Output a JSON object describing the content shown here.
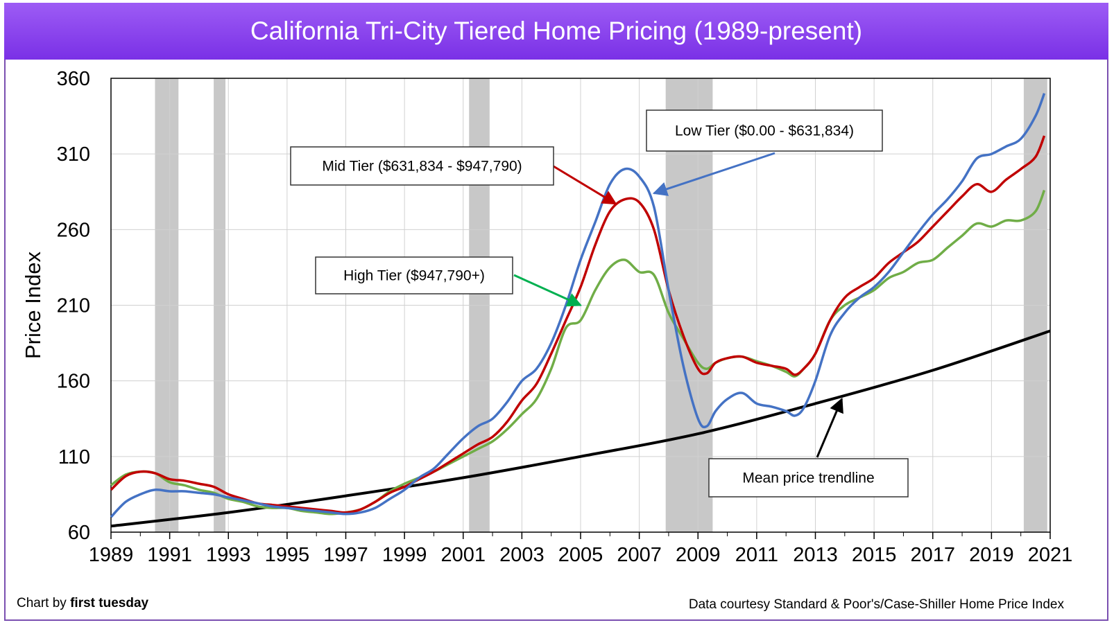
{
  "title": "California Tri-City Tiered Home Pricing (1989-present)",
  "credit_prefix": "Chart by ",
  "credit_brand": "first tuesday",
  "source": "Data courtesy Standard & Poor's/Case-Shiller Home Price Index",
  "colors": {
    "low": "#4472c4",
    "mid": "#c00000",
    "high": "#70ad47",
    "trend": "#000000",
    "recession": "#c8c8c8",
    "header": "#8a40ee"
  },
  "chart_data": {
    "type": "line",
    "ylabel": "Price Index",
    "xlabel": "",
    "xlim": [
      1989,
      2021
    ],
    "ylim": [
      60,
      360
    ],
    "yticks": [
      60,
      110,
      160,
      210,
      260,
      310,
      360
    ],
    "xticks": [
      1989,
      1991,
      1993,
      1995,
      1997,
      1999,
      2001,
      2003,
      2005,
      2007,
      2009,
      2011,
      2013,
      2015,
      2017,
      2019,
      2021
    ],
    "grid": true,
    "recessions": [
      [
        1990.5,
        1991.3
      ],
      [
        1992.5,
        1992.9
      ],
      [
        2001.2,
        2001.9
      ],
      [
        2007.9,
        2009.5
      ],
      [
        2020.1,
        2020.9
      ]
    ],
    "series": [
      {
        "key": "low",
        "name": "Low Tier ($0.00 - $631,834)",
        "x": [
          1989,
          1989.5,
          1990,
          1990.5,
          1991,
          1991.5,
          1992,
          1992.5,
          1993,
          1993.5,
          1994,
          1994.5,
          1995,
          1995.5,
          1996,
          1996.5,
          1997,
          1997.5,
          1998,
          1998.5,
          1999,
          1999.5,
          2000,
          2000.5,
          2001,
          2001.5,
          2002,
          2002.5,
          2003,
          2003.5,
          2004,
          2004.5,
          2005,
          2005.5,
          2006,
          2006.5,
          2007,
          2007.5,
          2008,
          2008.5,
          2009,
          2009.3,
          2009.6,
          2010,
          2010.5,
          2011,
          2011.5,
          2012,
          2012.3,
          2012.6,
          2013,
          2013.5,
          2014,
          2014.5,
          2015,
          2015.5,
          2016,
          2016.5,
          2017,
          2017.5,
          2018,
          2018.5,
          2019,
          2019.5,
          2020,
          2020.5,
          2020.8
        ],
        "values": [
          70,
          80,
          85,
          88,
          87,
          87,
          86,
          85,
          83,
          81,
          79,
          77,
          76,
          75,
          74,
          73,
          72,
          73,
          76,
          82,
          88,
          96,
          102,
          112,
          122,
          130,
          135,
          146,
          160,
          168,
          185,
          210,
          240,
          265,
          290,
          300,
          295,
          275,
          220,
          170,
          135,
          130,
          140,
          148,
          152,
          145,
          143,
          140,
          137,
          142,
          160,
          190,
          205,
          215,
          222,
          232,
          245,
          258,
          270,
          280,
          292,
          307,
          310,
          315,
          320,
          335,
          350
        ]
      },
      {
        "key": "mid",
        "name": "Mid Tier ($631,834 - $947,790)",
        "x": [
          1989,
          1989.5,
          1990,
          1990.5,
          1991,
          1991.5,
          1992,
          1992.5,
          1993,
          1993.5,
          1994,
          1994.5,
          1995,
          1995.5,
          1996,
          1996.5,
          1997,
          1997.5,
          1998,
          1998.5,
          1999,
          1999.5,
          2000,
          2000.5,
          2001,
          2001.5,
          2002,
          2002.5,
          2003,
          2003.5,
          2004,
          2004.5,
          2005,
          2005.5,
          2006,
          2006.5,
          2007,
          2007.5,
          2008,
          2008.5,
          2009,
          2009.3,
          2009.6,
          2010,
          2010.5,
          2011,
          2011.5,
          2012,
          2012.3,
          2012.6,
          2013,
          2013.5,
          2014,
          2014.5,
          2015,
          2015.5,
          2016,
          2016.5,
          2017,
          2017.5,
          2018,
          2018.5,
          2019,
          2019.5,
          2020,
          2020.5,
          2020.8
        ],
        "values": [
          88,
          97,
          100,
          99,
          95,
          94,
          92,
          90,
          85,
          82,
          79,
          78,
          77,
          76,
          75,
          74,
          73,
          75,
          80,
          86,
          90,
          95,
          100,
          106,
          112,
          118,
          123,
          133,
          147,
          158,
          178,
          200,
          222,
          250,
          272,
          280,
          278,
          260,
          220,
          190,
          168,
          165,
          172,
          175,
          176,
          172,
          170,
          168,
          164,
          168,
          178,
          200,
          215,
          222,
          228,
          238,
          245,
          252,
          262,
          272,
          282,
          290,
          285,
          293,
          300,
          308,
          322
        ]
      },
      {
        "key": "high",
        "name": "High Tier ($947,790+)",
        "x": [
          1989,
          1989.5,
          1990,
          1990.5,
          1991,
          1991.5,
          1992,
          1992.5,
          1993,
          1993.5,
          1994,
          1994.5,
          1995,
          1995.5,
          1996,
          1996.5,
          1997,
          1997.5,
          1998,
          1998.5,
          1999,
          1999.5,
          2000,
          2000.5,
          2001,
          2001.5,
          2002,
          2002.5,
          2003,
          2003.5,
          2004,
          2004.5,
          2005,
          2005.5,
          2006,
          2006.5,
          2007,
          2007.5,
          2008,
          2008.5,
          2009,
          2009.3,
          2009.6,
          2010,
          2010.5,
          2011,
          2011.5,
          2012,
          2012.3,
          2012.6,
          2013,
          2013.5,
          2014,
          2014.5,
          2015,
          2015.5,
          2016,
          2016.5,
          2017,
          2017.5,
          2018,
          2018.5,
          2019,
          2019.5,
          2020,
          2020.5,
          2020.8
        ],
        "values": [
          91,
          98,
          100,
          99,
          93,
          91,
          88,
          86,
          82,
          80,
          77,
          76,
          76,
          74,
          73,
          72,
          73,
          75,
          80,
          87,
          92,
          96,
          100,
          105,
          110,
          115,
          120,
          128,
          138,
          148,
          168,
          195,
          200,
          220,
          235,
          240,
          232,
          230,
          205,
          188,
          172,
          168,
          172,
          175,
          176,
          173,
          170,
          166,
          163,
          168,
          178,
          200,
          210,
          215,
          220,
          228,
          232,
          238,
          240,
          248,
          256,
          264,
          262,
          266,
          266,
          272,
          286
        ]
      },
      {
        "key": "trend",
        "name": "Mean price trendline",
        "x": [
          1989,
          1993,
          1997,
          2001,
          2005,
          2009,
          2013,
          2017,
          2021
        ],
        "values": [
          64,
          73,
          84,
          96,
          110,
          125,
          145,
          167,
          193
        ]
      }
    ],
    "annotations": [
      {
        "key": "low",
        "text": "Low Tier ($0.00 - $631,834)",
        "point_x": 2007.5,
        "point_y": 284
      },
      {
        "key": "mid",
        "text": "Mid Tier ($631,834 - $947,790)",
        "point_x": 2006.2,
        "point_y": 277
      },
      {
        "key": "high",
        "text": "High Tier ($947,790+)",
        "point_x": 2005.0,
        "point_y": 210
      },
      {
        "key": "trend",
        "text": "Mean price trendline",
        "point_x": 2013.9,
        "point_y": 148
      }
    ]
  }
}
